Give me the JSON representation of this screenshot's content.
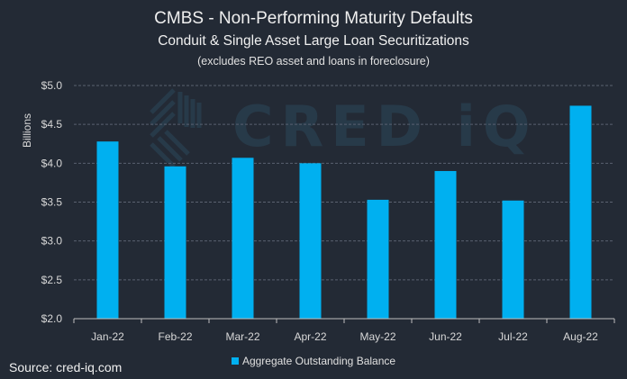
{
  "chart_data": {
    "type": "bar",
    "title": "CMBS - Non-Performing Maturity Defaults",
    "subtitle": "Conduit & Single Asset Large Loan Securitizations",
    "note": "(excludes REO asset and loans in foreclosure)",
    "ylabel": "Billions",
    "xlabel": "",
    "ylim": [
      2.0,
      5.0
    ],
    "yticks": [
      "$2.0",
      "$2.5",
      "$3.0",
      "$3.5",
      "$4.0",
      "$4.5",
      "$5.0"
    ],
    "categories": [
      "Jan-22",
      "Feb-22",
      "Mar-22",
      "Apr-22",
      "May-22",
      "Jun-22",
      "Jul-22",
      "Aug-22"
    ],
    "series": [
      {
        "name": "Aggregate Outstanding Balance",
        "values": [
          4.28,
          3.96,
          4.07,
          4.0,
          3.53,
          3.9,
          3.52,
          4.74
        ],
        "color": "#00b0f0"
      }
    ],
    "grid": true,
    "legend": "bottom"
  },
  "watermark": "CRED iQ",
  "source": "Source: cred-iq.com"
}
